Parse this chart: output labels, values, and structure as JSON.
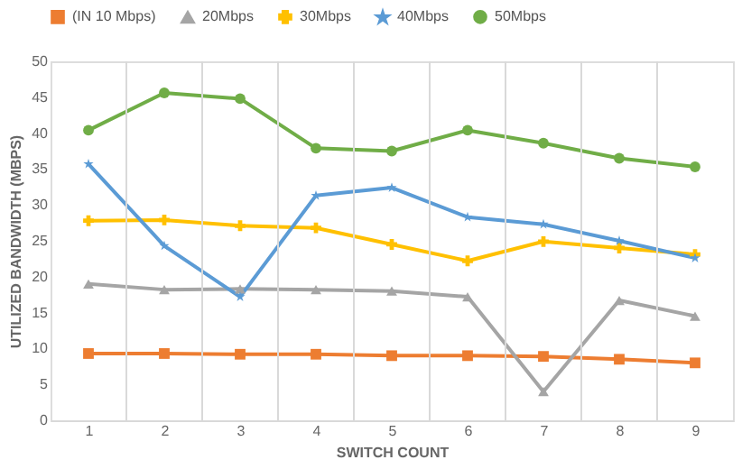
{
  "chart_data": {
    "type": "line",
    "xlabel": "SWITCH COUNT",
    "ylabel": "UTILIZED BANDWIDTH (MBPS)",
    "categories": [
      "1",
      "2",
      "3",
      "4",
      "5",
      "6",
      "7",
      "8",
      "9"
    ],
    "series": [
      {
        "name": "(IN 10 Mbps)",
        "color": "#ed7d31",
        "marker": "square",
        "values": [
          9.3,
          9.3,
          9.2,
          9.2,
          9.0,
          9.0,
          8.9,
          8.5,
          8.0
        ]
      },
      {
        "name": "20Mbps",
        "color": "#a5a5a5",
        "marker": "triangle",
        "values": [
          19.0,
          18.2,
          18.3,
          18.2,
          18.0,
          17.2,
          4.0,
          16.7,
          14.5
        ]
      },
      {
        "name": "30Mbps",
        "color": "#ffc000",
        "marker": "cross",
        "values": [
          27.8,
          27.9,
          27.1,
          26.8,
          24.5,
          22.2,
          24.9,
          24.0,
          23.1
        ]
      },
      {
        "name": "40Mbps",
        "color": "#5b9bd5",
        "marker": "star",
        "values": [
          35.7,
          24.3,
          17.2,
          31.3,
          32.4,
          28.3,
          27.3,
          25.0,
          22.6
        ]
      },
      {
        "name": "50Mbps",
        "color": "#70ad47",
        "marker": "circle",
        "values": [
          40.4,
          45.6,
          44.8,
          37.9,
          37.5,
          40.4,
          38.6,
          36.5,
          35.3
        ]
      }
    ],
    "ylim": [
      0,
      50
    ],
    "yticks": [
      0,
      5,
      10,
      15,
      20,
      25,
      30,
      35,
      40,
      45,
      50
    ],
    "grid": "x",
    "legend": "top",
    "line_style": "solid"
  }
}
